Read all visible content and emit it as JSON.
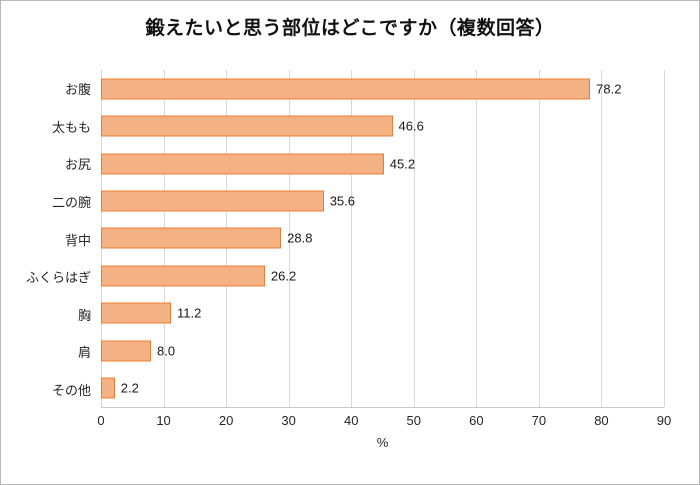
{
  "chart_data": {
    "type": "bar",
    "orientation": "horizontal",
    "title": "鍛えたいと思う部位はどこですか（複数回答）",
    "categories": [
      "お腹",
      "太もも",
      "お尻",
      "二の腕",
      "背中",
      "ふくらはぎ",
      "胸",
      "肩",
      "その他"
    ],
    "values": [
      78.2,
      46.6,
      45.2,
      35.6,
      28.8,
      26.2,
      11.2,
      8.0,
      2.2
    ],
    "xlabel": "%",
    "xlim": [
      0,
      90
    ],
    "xticks": [
      0,
      10,
      20,
      30,
      40,
      50,
      60,
      70,
      80,
      90
    ],
    "grid": true,
    "legend": "none",
    "bar_fill": "#f4b183",
    "bar_border": "#ed7d31",
    "gridline_color": "#d9d9d9"
  }
}
